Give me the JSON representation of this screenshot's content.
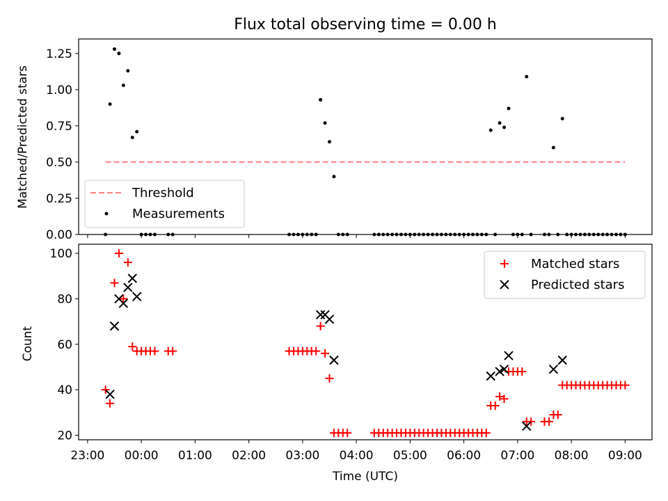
{
  "chart_data": [
    {
      "type": "scatter",
      "title": "Flux total observing time = 0.00 h",
      "xlabel": "",
      "ylabel": "Matched/Predicted stars",
      "xlim": [
        "22:50",
        "09:30"
      ],
      "ylim": [
        0,
        1.35
      ],
      "y_ticks": [
        0.0,
        0.25,
        0.5,
        0.75,
        1.0,
        1.25
      ],
      "y_tick_labels": [
        "0.00",
        "0.25",
        "0.50",
        "0.75",
        "1.00",
        "1.25"
      ],
      "grid": false,
      "legend": {
        "position": "lower-left",
        "entries": [
          "Threshold",
          "Measurements"
        ]
      },
      "series": [
        {
          "name": "Threshold",
          "style": "dashed-line",
          "color": "#ff7f7f",
          "points": [
            [
              "23:20",
              0.5
            ],
            [
              "09:00",
              0.5
            ]
          ]
        },
        {
          "name": "Measurements",
          "style": "dot",
          "color": "#000000",
          "points": [
            [
              "23:20",
              0.0
            ],
            [
              "23:25",
              0.9
            ],
            [
              "23:30",
              1.28
            ],
            [
              "23:35",
              1.25
            ],
            [
              "23:40",
              1.03
            ],
            [
              "23:45",
              1.13
            ],
            [
              "23:50",
              0.67
            ],
            [
              "23:55",
              0.71
            ],
            [
              "00:00",
              0.0
            ],
            [
              "00:05",
              0.0
            ],
            [
              "00:10",
              0.0
            ],
            [
              "00:15",
              0.0
            ],
            [
              "00:30",
              0.0
            ],
            [
              "00:35",
              0.0
            ],
            [
              "02:45",
              0.0
            ],
            [
              "02:50",
              0.0
            ],
            [
              "02:55",
              0.0
            ],
            [
              "03:00",
              0.0
            ],
            [
              "03:05",
              0.0
            ],
            [
              "03:10",
              0.0
            ],
            [
              "03:15",
              0.0
            ],
            [
              "03:20",
              0.93
            ],
            [
              "03:25",
              0.77
            ],
            [
              "03:30",
              0.64
            ],
            [
              "03:35",
              0.4
            ],
            [
              "03:40",
              0.0
            ],
            [
              "03:45",
              0.0
            ],
            [
              "03:50",
              0.0
            ],
            [
              "04:20",
              0.0
            ],
            [
              "04:25",
              0.0
            ],
            [
              "04:30",
              0.0
            ],
            [
              "04:35",
              0.0
            ],
            [
              "04:40",
              0.0
            ],
            [
              "04:45",
              0.0
            ],
            [
              "04:50",
              0.0
            ],
            [
              "04:55",
              0.0
            ],
            [
              "05:00",
              0.0
            ],
            [
              "05:05",
              0.0
            ],
            [
              "05:10",
              0.0
            ],
            [
              "05:15",
              0.0
            ],
            [
              "05:20",
              0.0
            ],
            [
              "05:25",
              0.0
            ],
            [
              "05:30",
              0.0
            ],
            [
              "05:35",
              0.0
            ],
            [
              "05:40",
              0.0
            ],
            [
              "05:45",
              0.0
            ],
            [
              "05:50",
              0.0
            ],
            [
              "05:55",
              0.0
            ],
            [
              "06:00",
              0.0
            ],
            [
              "06:05",
              0.0
            ],
            [
              "06:10",
              0.0
            ],
            [
              "06:15",
              0.0
            ],
            [
              "06:20",
              0.0
            ],
            [
              "06:25",
              0.0
            ],
            [
              "06:30",
              0.72
            ],
            [
              "06:35",
              0.0
            ],
            [
              "06:40",
              0.77
            ],
            [
              "06:45",
              0.74
            ],
            [
              "06:50",
              0.87
            ],
            [
              "06:55",
              0.0
            ],
            [
              "07:00",
              0.0
            ],
            [
              "07:05",
              0.0
            ],
            [
              "07:10",
              1.09
            ],
            [
              "07:15",
              0.0
            ],
            [
              "07:30",
              0.0
            ],
            [
              "07:35",
              0.0
            ],
            [
              "07:40",
              0.6
            ],
            [
              "07:45",
              0.0
            ],
            [
              "07:50",
              0.8
            ],
            [
              "07:55",
              0.0
            ],
            [
              "08:00",
              0.0
            ],
            [
              "08:05",
              0.0
            ],
            [
              "08:10",
              0.0
            ],
            [
              "08:15",
              0.0
            ],
            [
              "08:20",
              0.0
            ],
            [
              "08:25",
              0.0
            ],
            [
              "08:30",
              0.0
            ],
            [
              "08:35",
              0.0
            ],
            [
              "08:40",
              0.0
            ],
            [
              "08:45",
              0.0
            ],
            [
              "08:50",
              0.0
            ],
            [
              "08:55",
              0.0
            ],
            [
              "09:00",
              0.0
            ]
          ]
        }
      ]
    },
    {
      "type": "scatter",
      "title": "",
      "xlabel": "Time (UTC)",
      "ylabel": "Count",
      "xlim": [
        "22:50",
        "09:30"
      ],
      "ylim": [
        18,
        104
      ],
      "x_ticks": [
        "23:00",
        "00:00",
        "01:00",
        "02:00",
        "03:00",
        "04:00",
        "05:00",
        "06:00",
        "07:00",
        "08:00",
        "09:00"
      ],
      "y_ticks": [
        20,
        40,
        60,
        80,
        100
      ],
      "grid": false,
      "legend": {
        "position": "top-right",
        "entries": [
          "Matched stars",
          "Predicted stars"
        ]
      },
      "series": [
        {
          "name": "Matched stars",
          "marker": "plus",
          "color": "#ff0000",
          "points": [
            [
              "23:20",
              40
            ],
            [
              "23:25",
              34
            ],
            [
              "23:30",
              87
            ],
            [
              "23:35",
              100
            ],
            [
              "23:40",
              80
            ],
            [
              "23:45",
              96
            ],
            [
              "23:50",
              59
            ],
            [
              "23:55",
              57
            ],
            [
              "00:00",
              57
            ],
            [
              "00:05",
              57
            ],
            [
              "00:10",
              57
            ],
            [
              "00:15",
              57
            ],
            [
              "00:30",
              57
            ],
            [
              "00:35",
              57
            ],
            [
              "02:45",
              57
            ],
            [
              "02:50",
              57
            ],
            [
              "02:55",
              57
            ],
            [
              "03:00",
              57
            ],
            [
              "03:05",
              57
            ],
            [
              "03:10",
              57
            ],
            [
              "03:15",
              57
            ],
            [
              "03:20",
              68
            ],
            [
              "03:25",
              56
            ],
            [
              "03:30",
              45
            ],
            [
              "03:35",
              21
            ],
            [
              "03:40",
              21
            ],
            [
              "03:45",
              21
            ],
            [
              "03:50",
              21
            ],
            [
              "04:20",
              21
            ],
            [
              "04:25",
              21
            ],
            [
              "04:30",
              21
            ],
            [
              "04:35",
              21
            ],
            [
              "04:40",
              21
            ],
            [
              "04:45",
              21
            ],
            [
              "04:50",
              21
            ],
            [
              "04:55",
              21
            ],
            [
              "05:00",
              21
            ],
            [
              "05:05",
              21
            ],
            [
              "05:10",
              21
            ],
            [
              "05:15",
              21
            ],
            [
              "05:20",
              21
            ],
            [
              "05:25",
              21
            ],
            [
              "05:30",
              21
            ],
            [
              "05:35",
              21
            ],
            [
              "05:40",
              21
            ],
            [
              "05:45",
              21
            ],
            [
              "05:50",
              21
            ],
            [
              "05:55",
              21
            ],
            [
              "06:00",
              21
            ],
            [
              "06:05",
              21
            ],
            [
              "06:10",
              21
            ],
            [
              "06:15",
              21
            ],
            [
              "06:20",
              21
            ],
            [
              "06:25",
              21
            ],
            [
              "06:30",
              33
            ],
            [
              "06:35",
              33
            ],
            [
              "06:40",
              37
            ],
            [
              "06:45",
              36
            ],
            [
              "06:50",
              48
            ],
            [
              "06:55",
              48
            ],
            [
              "07:00",
              48
            ],
            [
              "07:05",
              48
            ],
            [
              "07:10",
              26
            ],
            [
              "07:15",
              26
            ],
            [
              "07:30",
              26
            ],
            [
              "07:35",
              26
            ],
            [
              "07:40",
              29
            ],
            [
              "07:45",
              29
            ],
            [
              "07:50",
              42
            ],
            [
              "07:55",
              42
            ],
            [
              "08:00",
              42
            ],
            [
              "08:05",
              42
            ],
            [
              "08:10",
              42
            ],
            [
              "08:15",
              42
            ],
            [
              "08:20",
              42
            ],
            [
              "08:25",
              42
            ],
            [
              "08:30",
              42
            ],
            [
              "08:35",
              42
            ],
            [
              "08:40",
              42
            ],
            [
              "08:45",
              42
            ],
            [
              "08:50",
              42
            ],
            [
              "08:55",
              42
            ],
            [
              "09:00",
              42
            ]
          ]
        },
        {
          "name": "Predicted stars",
          "marker": "x",
          "color": "#000000",
          "points": [
            [
              "23:25",
              38
            ],
            [
              "23:30",
              68
            ],
            [
              "23:35",
              80
            ],
            [
              "23:40",
              78
            ],
            [
              "23:45",
              85
            ],
            [
              "23:50",
              89
            ],
            [
              "23:55",
              81
            ],
            [
              "03:20",
              73
            ],
            [
              "03:25",
              73
            ],
            [
              "03:30",
              71
            ],
            [
              "03:35",
              53
            ],
            [
              "06:30",
              46
            ],
            [
              "06:40",
              48
            ],
            [
              "06:45",
              49
            ],
            [
              "06:50",
              55
            ],
            [
              "07:10",
              24
            ],
            [
              "07:40",
              49
            ],
            [
              "07:50",
              53
            ]
          ]
        }
      ]
    }
  ]
}
